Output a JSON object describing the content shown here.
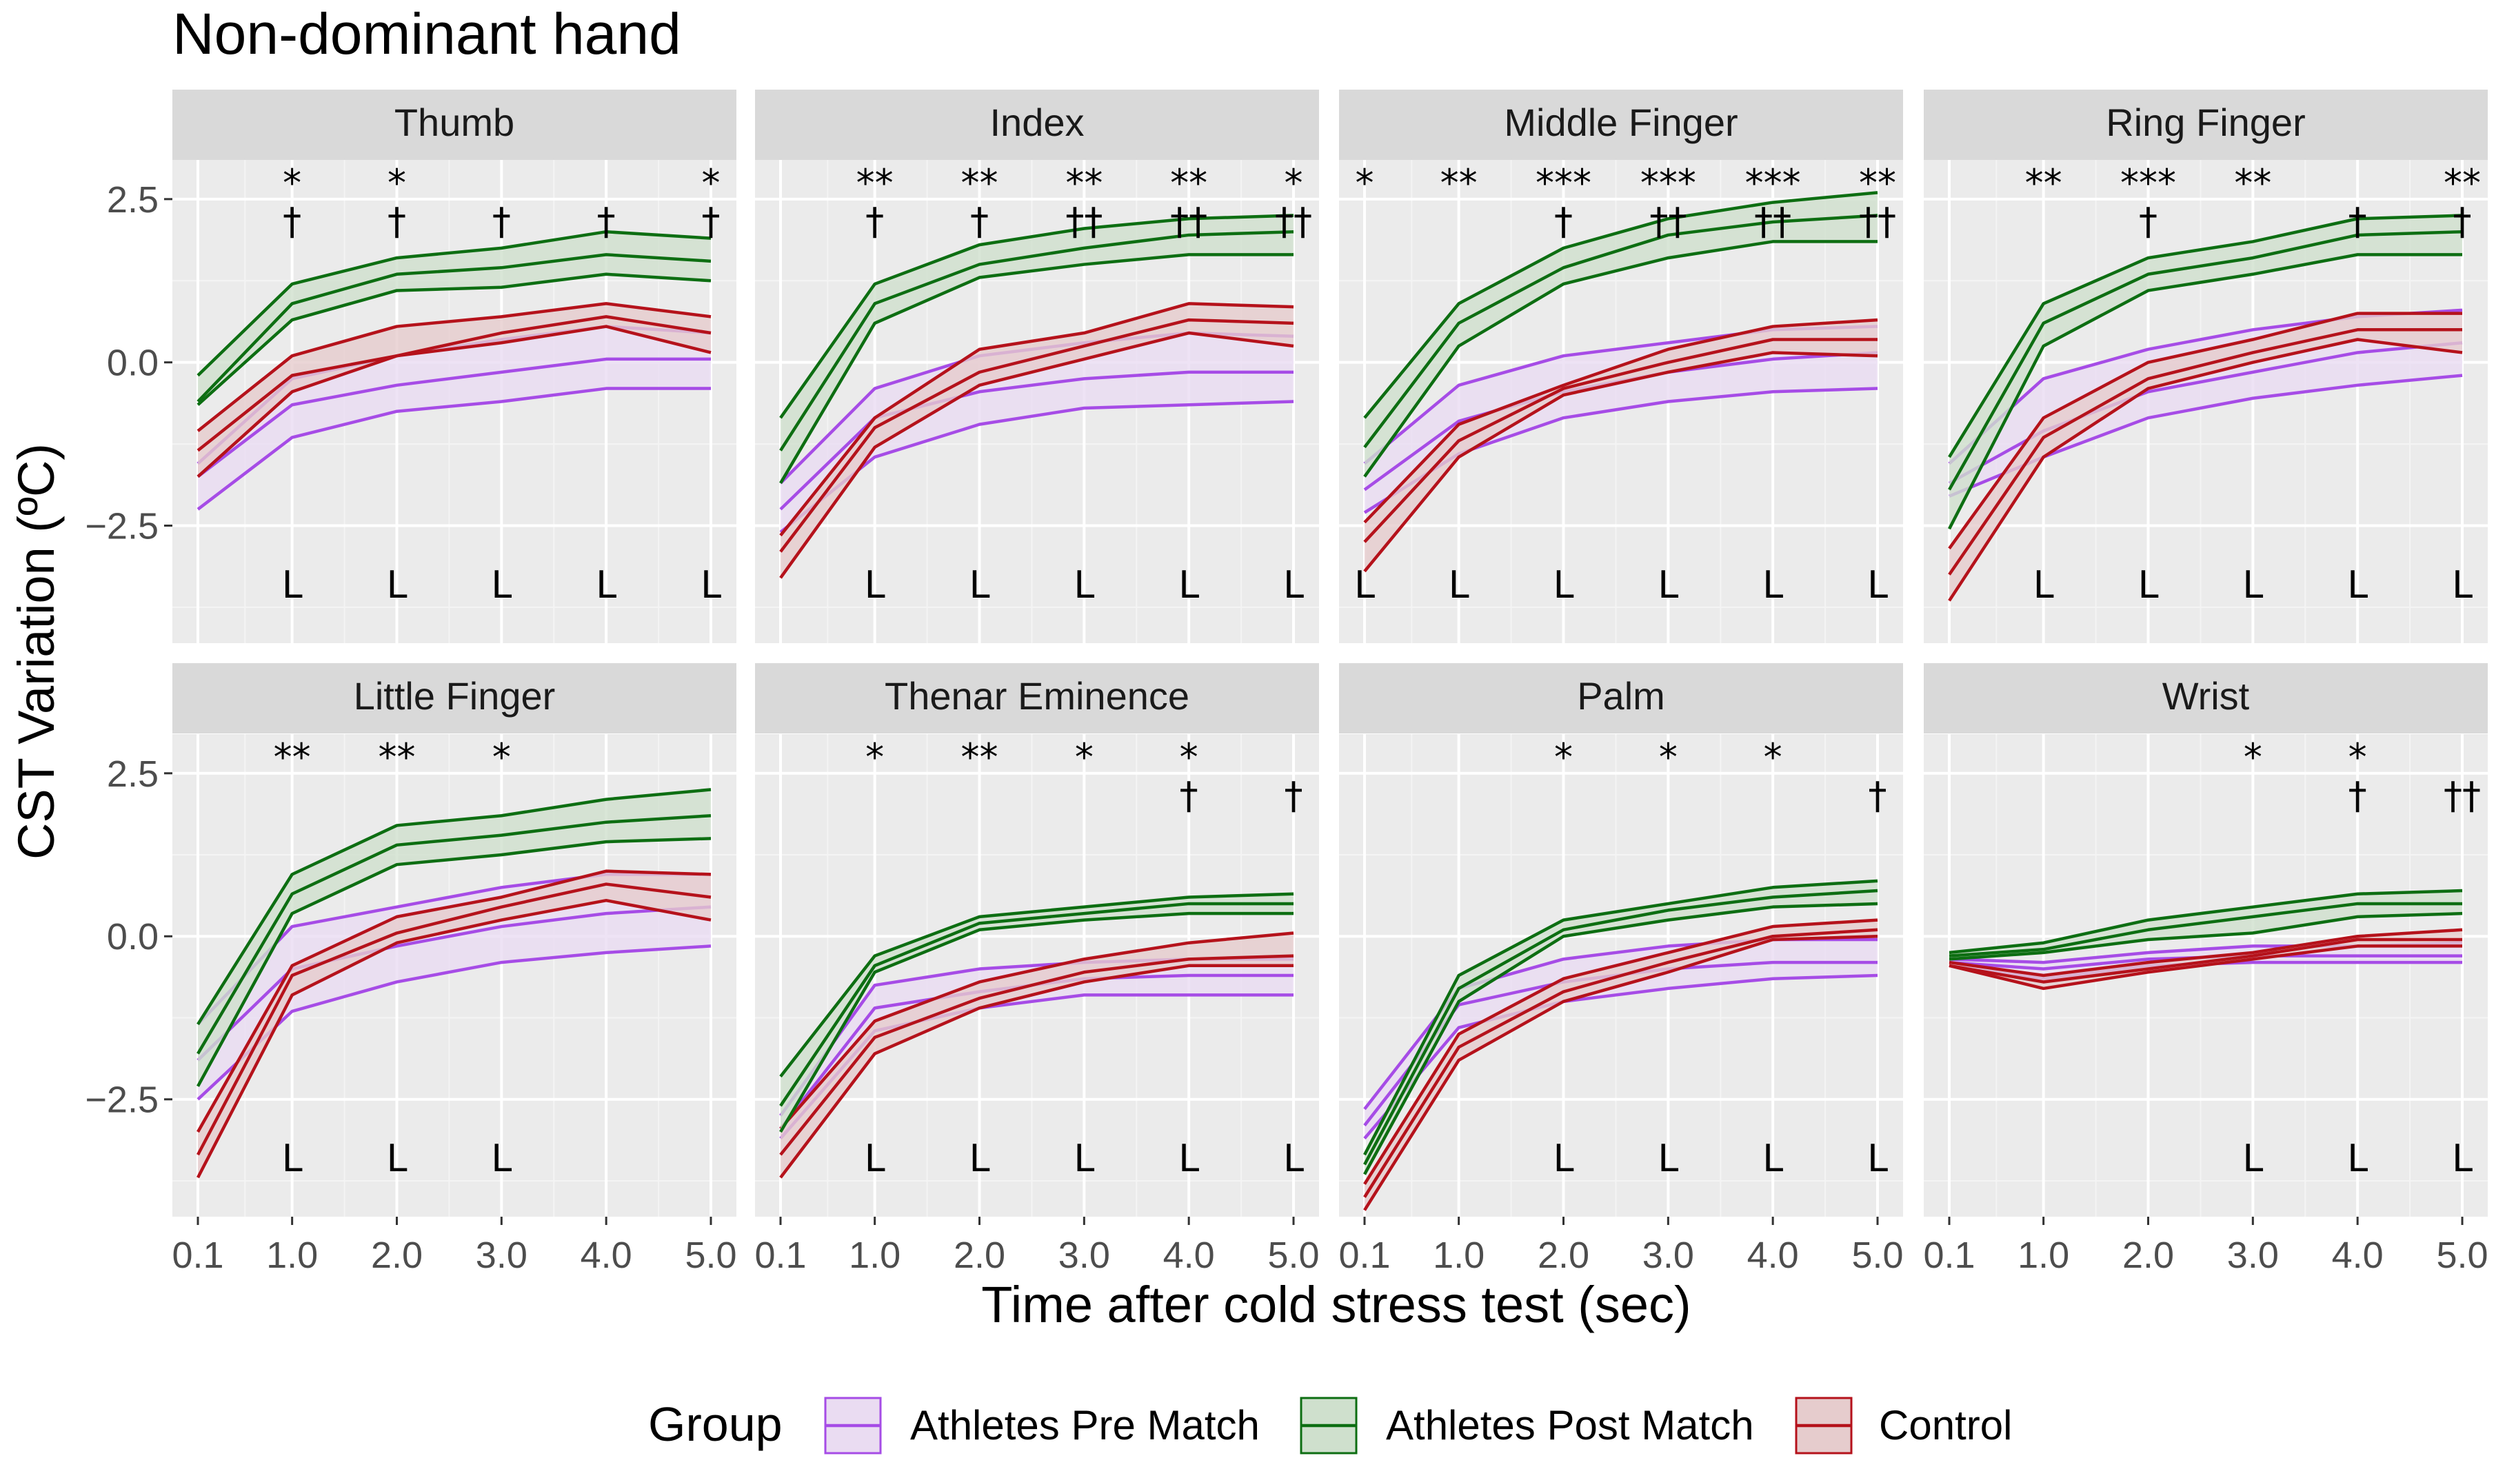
{
  "figure_title": "Non-dominant hand",
  "chart_data": {
    "type": "line",
    "title": "Non-dominant hand",
    "xlabel": "Time after cold stress test (sec)",
    "ylabel": "CST Variation (ºC)",
    "x": [
      0.1,
      1.0,
      2.0,
      3.0,
      4.0,
      5.0
    ],
    "x_tick_labels": [
      "0.1",
      "1.0",
      "2.0",
      "3.0",
      "4.0",
      "5.0"
    ],
    "ylim": [
      -4.3,
      3.1
    ],
    "y_ticks": [
      2.5,
      0.0,
      -2.5
    ],
    "y_tick_labels": [
      "2.5",
      "0.0",
      "−2.5"
    ],
    "grid": true,
    "legend": {
      "title": "Group",
      "position": "bottom",
      "entries": [
        {
          "name": "Athletes Pre Match",
          "line": "#a64ce6",
          "fill": "#eadcf2"
        },
        {
          "name": "Athletes Post Match",
          "line": "#0d6e12",
          "fill": "#cfe0cd"
        },
        {
          "name": "Control",
          "line": "#b5121b",
          "fill": "#e6cccd"
        }
      ]
    },
    "series_note": "Each group drawn as mean line with lower/upper band (values in °C)",
    "panels": [
      {
        "name": "Thumb",
        "series": {
          "pre": {
            "lo": [
              -2.25,
              -1.15,
              -0.75,
              -0.6,
              -0.4,
              -0.4
            ],
            "mid": [
              -1.75,
              -0.65,
              -0.35,
              -0.15,
              0.05,
              0.05
            ],
            "hi": [
              -1.55,
              -0.25,
              0.1,
              0.35,
              0.55,
              0.45
            ]
          },
          "post": {
            "lo": [
              -0.65,
              0.65,
              1.1,
              1.15,
              1.35,
              1.25
            ],
            "mid": [
              -0.6,
              0.9,
              1.35,
              1.45,
              1.65,
              1.55
            ],
            "hi": [
              -0.2,
              1.2,
              1.6,
              1.75,
              2.0,
              1.9
            ]
          },
          "ctrl": {
            "lo": [
              -1.75,
              -0.45,
              0.1,
              0.3,
              0.55,
              0.15
            ],
            "mid": [
              -1.35,
              -0.2,
              0.1,
              0.45,
              0.7,
              0.45
            ],
            "hi": [
              -1.05,
              0.1,
              0.55,
              0.7,
              0.9,
              0.7
            ]
          }
        },
        "sig_top": [
          "",
          "*",
          "*",
          "",
          "",
          "*"
        ],
        "sig_mid": [
          "",
          "†",
          "†",
          "†",
          "†",
          "†"
        ],
        "sig_bottom": [
          "",
          "L",
          "L",
          "L",
          "L",
          "L"
        ]
      },
      {
        "name": "Index",
        "series": {
          "pre": {
            "lo": [
              -2.6,
              -1.45,
              -0.95,
              -0.7,
              -0.65,
              -0.6
            ],
            "mid": [
              -2.25,
              -0.85,
              -0.45,
              -0.25,
              -0.15,
              -0.15
            ],
            "hi": [
              -1.85,
              -0.4,
              0.1,
              0.3,
              0.45,
              0.4
            ]
          },
          "post": {
            "lo": [
              -1.85,
              0.6,
              1.3,
              1.5,
              1.65,
              1.65
            ],
            "mid": [
              -1.35,
              0.9,
              1.5,
              1.75,
              1.95,
              2.0
            ],
            "hi": [
              -0.85,
              1.2,
              1.8,
              2.05,
              2.2,
              2.25
            ]
          },
          "ctrl": {
            "lo": [
              -3.3,
              -1.3,
              -0.35,
              0.05,
              0.45,
              0.25
            ],
            "mid": [
              -2.9,
              -1.0,
              -0.15,
              0.25,
              0.65,
              0.6
            ],
            "hi": [
              -2.65,
              -0.85,
              0.2,
              0.45,
              0.9,
              0.85
            ]
          }
        },
        "sig_top": [
          "",
          "**",
          "**",
          "**",
          "**",
          "*"
        ],
        "sig_mid": [
          "",
          "†",
          "†",
          "††",
          "††",
          "††"
        ],
        "sig_bottom": [
          "",
          "L",
          "L",
          "L",
          "L",
          "L"
        ]
      },
      {
        "name": "Middle Finger",
        "series": {
          "pre": {
            "lo": [
              -2.3,
              -1.4,
              -0.85,
              -0.6,
              -0.45,
              -0.4
            ],
            "mid": [
              -1.95,
              -0.9,
              -0.45,
              -0.15,
              0.05,
              0.15
            ],
            "hi": [
              -1.55,
              -0.35,
              0.1,
              0.3,
              0.5,
              0.55
            ]
          },
          "post": {
            "lo": [
              -1.75,
              0.25,
              1.2,
              1.6,
              1.85,
              1.85
            ],
            "mid": [
              -1.3,
              0.6,
              1.45,
              1.95,
              2.15,
              2.25
            ],
            "hi": [
              -0.85,
              0.9,
              1.75,
              2.2,
              2.45,
              2.6
            ]
          },
          "ctrl": {
            "lo": [
              -3.2,
              -1.45,
              -0.5,
              -0.15,
              0.15,
              0.1
            ],
            "mid": [
              -2.75,
              -1.2,
              -0.4,
              0.0,
              0.35,
              0.35
            ],
            "hi": [
              -2.45,
              -0.95,
              -0.35,
              0.2,
              0.55,
              0.65
            ]
          }
        },
        "sig_top": [
          "*",
          "**",
          "***",
          "***",
          "***",
          "**"
        ],
        "sig_mid": [
          "",
          "",
          "†",
          "††",
          "††",
          "††"
        ],
        "sig_bottom": [
          "L",
          "L",
          "L",
          "L",
          "L",
          "L"
        ]
      },
      {
        "name": "Ring Finger",
        "series": {
          "pre": {
            "lo": [
              -2.05,
              -1.45,
              -0.85,
              -0.55,
              -0.35,
              -0.2
            ],
            "mid": [
              -1.85,
              -1.05,
              -0.45,
              -0.15,
              0.15,
              0.3
            ],
            "hi": [
              -1.55,
              -0.25,
              0.2,
              0.5,
              0.7,
              0.8
            ]
          },
          "post": {
            "lo": [
              -2.55,
              0.25,
              1.1,
              1.35,
              1.65,
              1.65
            ],
            "mid": [
              -1.95,
              0.6,
              1.35,
              1.6,
              1.95,
              2.0
            ],
            "hi": [
              -1.45,
              0.9,
              1.6,
              1.85,
              2.2,
              2.25
            ]
          },
          "ctrl": {
            "lo": [
              -3.65,
              -1.45,
              -0.4,
              0.0,
              0.35,
              0.15
            ],
            "mid": [
              -3.25,
              -1.15,
              -0.25,
              0.15,
              0.5,
              0.5
            ],
            "hi": [
              -2.85,
              -0.85,
              0.0,
              0.35,
              0.75,
              0.75
            ]
          }
        },
        "sig_top": [
          "",
          "**",
          "***",
          "**",
          "",
          "**"
        ],
        "sig_mid": [
          "",
          "",
          "†",
          "",
          "†",
          "†"
        ],
        "sig_bottom": [
          "",
          "L",
          "L",
          "L",
          "L",
          "L"
        ]
      },
      {
        "name": "Little Finger",
        "series": {
          "pre": {
            "lo": [
              -2.5,
              -1.15,
              -0.7,
              -0.4,
              -0.25,
              -0.15
            ],
            "mid": [
              -1.9,
              -0.5,
              -0.15,
              0.15,
              0.35,
              0.45
            ],
            "hi": [
              -1.35,
              0.15,
              0.45,
              0.75,
              0.95,
              0.95
            ]
          },
          "post": {
            "lo": [
              -2.3,
              0.35,
              1.1,
              1.25,
              1.45,
              1.5
            ],
            "mid": [
              -1.8,
              0.65,
              1.4,
              1.55,
              1.75,
              1.85
            ],
            "hi": [
              -1.35,
              0.95,
              1.7,
              1.85,
              2.1,
              2.25
            ]
          },
          "ctrl": {
            "lo": [
              -3.7,
              -0.9,
              -0.1,
              0.25,
              0.55,
              0.25
            ],
            "mid": [
              -3.35,
              -0.6,
              0.05,
              0.45,
              0.8,
              0.6
            ],
            "hi": [
              -3.0,
              -0.45,
              0.3,
              0.6,
              1.0,
              0.95
            ]
          }
        },
        "sig_top": [
          "",
          "**",
          "**",
          "*",
          "",
          ""
        ],
        "sig_mid": [
          "",
          "",
          "",
          "",
          "",
          ""
        ],
        "sig_bottom": [
          "",
          "L",
          "L",
          "L",
          "",
          ""
        ]
      },
      {
        "name": "Thenar Eminence",
        "series": {
          "pre": {
            "lo": [
              -3.1,
              -1.45,
              -1.1,
              -0.9,
              -0.9,
              -0.9
            ],
            "mid": [
              -2.95,
              -1.1,
              -0.85,
              -0.65,
              -0.6,
              -0.6
            ],
            "hi": [
              -2.75,
              -0.75,
              -0.5,
              -0.4,
              -0.35,
              -0.35
            ]
          },
          "post": {
            "lo": [
              -3.0,
              -0.55,
              0.1,
              0.25,
              0.35,
              0.35
            ],
            "mid": [
              -2.6,
              -0.45,
              0.2,
              0.35,
              0.5,
              0.5
            ],
            "hi": [
              -2.15,
              -0.3,
              0.3,
              0.45,
              0.6,
              0.65
            ]
          },
          "ctrl": {
            "lo": [
              -3.7,
              -1.8,
              -1.1,
              -0.7,
              -0.45,
              -0.45
            ],
            "mid": [
              -3.35,
              -1.55,
              -0.95,
              -0.55,
              -0.35,
              -0.3
            ],
            "hi": [
              -2.95,
              -1.3,
              -0.7,
              -0.35,
              -0.1,
              0.05
            ]
          }
        },
        "sig_top": [
          "",
          "*",
          "**",
          "*",
          "*",
          ""
        ],
        "sig_mid": [
          "",
          "",
          "",
          "",
          "†",
          "†"
        ],
        "sig_bottom": [
          "",
          "L",
          "L",
          "L",
          "L",
          "L"
        ]
      },
      {
        "name": "Palm",
        "series": {
          "pre": {
            "lo": [
              -3.1,
              -1.4,
              -1.0,
              -0.8,
              -0.65,
              -0.6
            ],
            "mid": [
              -2.9,
              -1.05,
              -0.7,
              -0.5,
              -0.4,
              -0.4
            ],
            "hi": [
              -2.65,
              -0.8,
              -0.35,
              -0.15,
              -0.05,
              -0.05
            ]
          },
          "post": {
            "lo": [
              -3.65,
              -1.0,
              0.0,
              0.25,
              0.45,
              0.5
            ],
            "mid": [
              -3.5,
              -0.8,
              0.1,
              0.4,
              0.6,
              0.7
            ],
            "hi": [
              -3.35,
              -0.6,
              0.25,
              0.5,
              0.75,
              0.85
            ]
          },
          "ctrl": {
            "lo": [
              -4.2,
              -1.9,
              -1.0,
              -0.55,
              -0.05,
              0.0
            ],
            "mid": [
              -4.0,
              -1.7,
              -0.85,
              -0.4,
              0.0,
              0.1
            ],
            "hi": [
              -3.8,
              -1.5,
              -0.65,
              -0.25,
              0.15,
              0.25
            ]
          }
        },
        "sig_top": [
          "",
          "",
          "*",
          "*",
          "*",
          ""
        ],
        "sig_mid": [
          "",
          "",
          "",
          "",
          "",
          "†"
        ],
        "sig_bottom": [
          "",
          "",
          "L",
          "L",
          "L",
          "L"
        ]
      },
      {
        "name": "Wrist",
        "series": {
          "pre": {
            "lo": [
              -0.45,
              -0.65,
              -0.45,
              -0.4,
              -0.4,
              -0.4
            ],
            "mid": [
              -0.4,
              -0.5,
              -0.35,
              -0.3,
              -0.3,
              -0.3
            ],
            "hi": [
              -0.35,
              -0.4,
              -0.25,
              -0.15,
              -0.15,
              -0.1
            ]
          },
          "post": {
            "lo": [
              -0.35,
              -0.25,
              -0.05,
              0.05,
              0.3,
              0.35
            ],
            "mid": [
              -0.3,
              -0.2,
              0.1,
              0.3,
              0.5,
              0.5
            ],
            "hi": [
              -0.25,
              -0.1,
              0.25,
              0.45,
              0.65,
              0.7
            ]
          },
          "ctrl": {
            "lo": [
              -0.45,
              -0.8,
              -0.55,
              -0.35,
              -0.15,
              -0.15
            ],
            "mid": [
              -0.45,
              -0.7,
              -0.5,
              -0.3,
              -0.05,
              -0.05
            ],
            "hi": [
              -0.4,
              -0.6,
              -0.4,
              -0.25,
              0.0,
              0.1
            ]
          }
        },
        "sig_top": [
          "",
          "",
          "",
          "*",
          "*",
          ""
        ],
        "sig_mid": [
          "",
          "",
          "",
          "",
          "†",
          "††"
        ],
        "sig_bottom": [
          "",
          "",
          "",
          "L",
          "L",
          "L"
        ]
      }
    ]
  }
}
